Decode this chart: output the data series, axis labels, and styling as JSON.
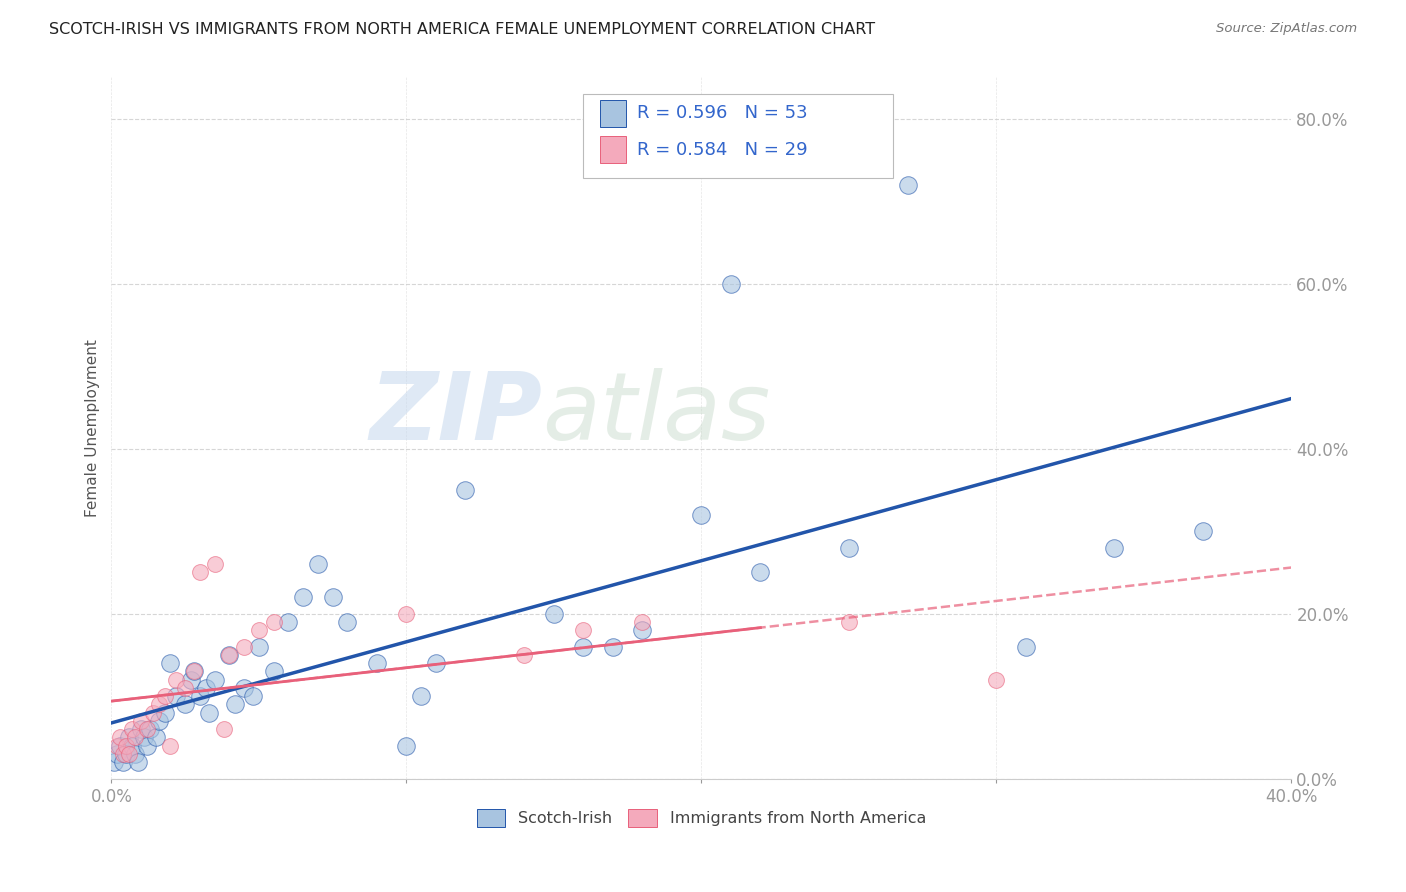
{
  "title": "SCOTCH-IRISH VS IMMIGRANTS FROM NORTH AMERICA FEMALE UNEMPLOYMENT CORRELATION CHART",
  "source": "Source: ZipAtlas.com",
  "ylabel_label": "Female Unemployment",
  "legend_label1": "Scotch-Irish",
  "legend_label2": "Immigrants from North America",
  "R1": 0.596,
  "N1": 53,
  "R2": 0.584,
  "N2": 29,
  "color_blue": "#A8C4E0",
  "color_pink": "#F4AABC",
  "line_color_blue": "#2255AA",
  "line_color_pink": "#E8607A",
  "watermark_zip": "ZIP",
  "watermark_atlas": "atlas",
  "xlim": [
    0.0,
    0.4
  ],
  "ylim": [
    0.0,
    0.85
  ],
  "blue_scatter_x": [
    0.001,
    0.002,
    0.003,
    0.004,
    0.005,
    0.006,
    0.007,
    0.008,
    0.009,
    0.01,
    0.011,
    0.012,
    0.013,
    0.015,
    0.016,
    0.018,
    0.02,
    0.022,
    0.025,
    0.027,
    0.028,
    0.03,
    0.032,
    0.033,
    0.035,
    0.04,
    0.042,
    0.045,
    0.048,
    0.05,
    0.055,
    0.06,
    0.065,
    0.07,
    0.075,
    0.08,
    0.09,
    0.1,
    0.105,
    0.11,
    0.12,
    0.15,
    0.16,
    0.17,
    0.18,
    0.2,
    0.21,
    0.22,
    0.25,
    0.27,
    0.31,
    0.34,
    0.37
  ],
  "blue_scatter_y": [
    0.02,
    0.03,
    0.04,
    0.02,
    0.03,
    0.05,
    0.04,
    0.03,
    0.02,
    0.06,
    0.05,
    0.04,
    0.06,
    0.05,
    0.07,
    0.08,
    0.14,
    0.1,
    0.09,
    0.12,
    0.13,
    0.1,
    0.11,
    0.08,
    0.12,
    0.15,
    0.09,
    0.11,
    0.1,
    0.16,
    0.13,
    0.19,
    0.22,
    0.26,
    0.22,
    0.19,
    0.14,
    0.04,
    0.1,
    0.14,
    0.35,
    0.2,
    0.16,
    0.16,
    0.18,
    0.32,
    0.6,
    0.25,
    0.28,
    0.72,
    0.16,
    0.28,
    0.3
  ],
  "pink_scatter_x": [
    0.002,
    0.003,
    0.004,
    0.005,
    0.006,
    0.007,
    0.008,
    0.01,
    0.012,
    0.014,
    0.016,
    0.018,
    0.02,
    0.022,
    0.025,
    0.028,
    0.03,
    0.035,
    0.038,
    0.04,
    0.045,
    0.05,
    0.055,
    0.1,
    0.14,
    0.16,
    0.18,
    0.25,
    0.3
  ],
  "pink_scatter_y": [
    0.04,
    0.05,
    0.03,
    0.04,
    0.03,
    0.06,
    0.05,
    0.07,
    0.06,
    0.08,
    0.09,
    0.1,
    0.04,
    0.12,
    0.11,
    0.13,
    0.25,
    0.26,
    0.06,
    0.15,
    0.16,
    0.18,
    0.19,
    0.2,
    0.15,
    0.18,
    0.19,
    0.19,
    0.12
  ],
  "ytick_labels": [
    "0.0%",
    "20.0%",
    "40.0%",
    "60.0%",
    "80.0%"
  ],
  "ytick_values": [
    0.0,
    0.2,
    0.4,
    0.6,
    0.8
  ],
  "xtick_labels_bottom": [
    "0.0%",
    "",
    "",
    "",
    "40.0%"
  ],
  "xtick_values": [
    0.0,
    0.1,
    0.2,
    0.3,
    0.4
  ],
  "background_color": "#FFFFFF",
  "title_fontsize": 11.5,
  "axis_color": "#3366CC",
  "grid_color": "#CCCCCC",
  "legend_text_color": "#3366CC"
}
